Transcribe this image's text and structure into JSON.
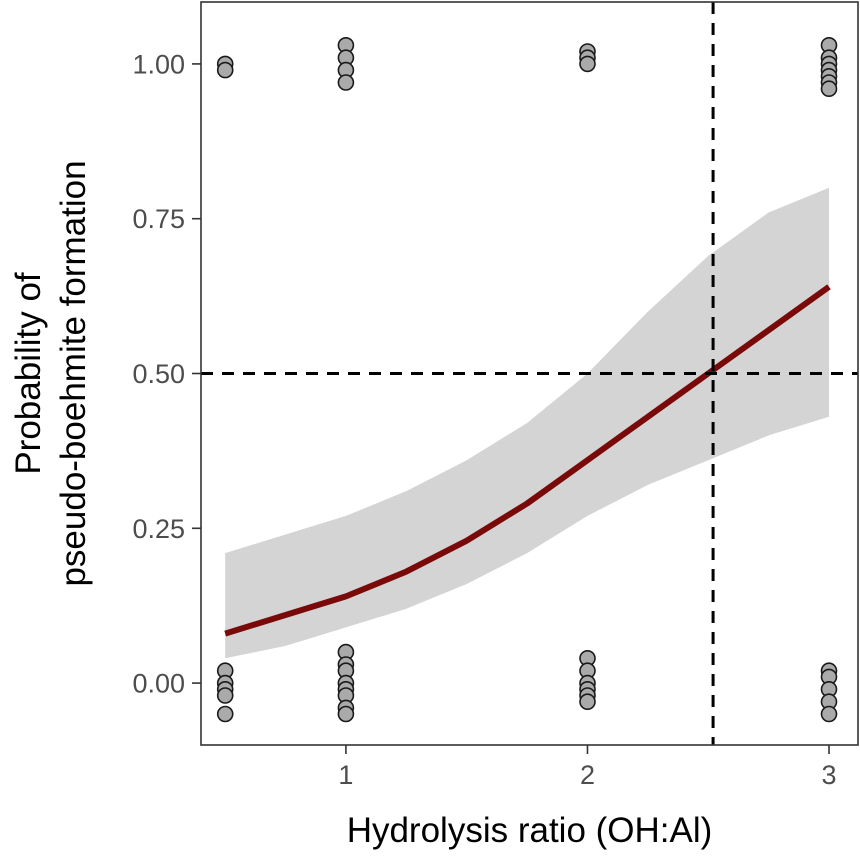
{
  "chart_data": {
    "type": "line",
    "title": "",
    "xlabel": "Hydrolysis ratio (OH:Al)",
    "ylabel": [
      "Probability of",
      "pseudo-boehmite formation"
    ],
    "xlim": [
      0.4,
      3.12
    ],
    "ylim": [
      -0.1,
      1.1
    ],
    "x_ticks": [
      1,
      2,
      3
    ],
    "x_tick_labels": [
      "1",
      "2",
      "3"
    ],
    "y_ticks": [
      0.0,
      0.25,
      0.5,
      0.75,
      1.0
    ],
    "y_tick_labels": [
      "0.00",
      "0.25",
      "0.50",
      "0.75",
      "1.00"
    ],
    "grid": false,
    "colors": {
      "fit_line": "#7a0a0a",
      "ribbon": "#d4d4d4",
      "point_fill": "#aaaaaa",
      "point_edge": "#1a1a1a",
      "reference_line": "#000000"
    },
    "reference_lines": {
      "vertical_x": 2.52,
      "horizontal_y": 0.5
    },
    "fit": {
      "name": "fit",
      "x": [
        0.5,
        0.75,
        1.0,
        1.25,
        1.5,
        1.75,
        2.0,
        2.25,
        2.5,
        2.75,
        3.0
      ],
      "y": [
        0.08,
        0.11,
        0.14,
        0.18,
        0.23,
        0.29,
        0.36,
        0.43,
        0.5,
        0.57,
        0.64
      ]
    },
    "ribbon": {
      "x": [
        0.5,
        0.75,
        1.0,
        1.25,
        1.5,
        1.75,
        2.0,
        2.25,
        2.5,
        2.75,
        3.0
      ],
      "lower": [
        0.04,
        0.06,
        0.09,
        0.12,
        0.16,
        0.21,
        0.27,
        0.32,
        0.36,
        0.4,
        0.43
      ],
      "upper": [
        0.21,
        0.24,
        0.27,
        0.31,
        0.36,
        0.42,
        0.5,
        0.6,
        0.69,
        0.76,
        0.8
      ]
    },
    "points": [
      {
        "x": 0.5,
        "y": 1.0
      },
      {
        "x": 0.5,
        "y": 0.99
      },
      {
        "x": 1.0,
        "y": 1.03
      },
      {
        "x": 1.0,
        "y": 1.01
      },
      {
        "x": 1.0,
        "y": 0.99
      },
      {
        "x": 1.0,
        "y": 0.97
      },
      {
        "x": 2.0,
        "y": 1.02
      },
      {
        "x": 2.0,
        "y": 1.01
      },
      {
        "x": 2.0,
        "y": 1.0
      },
      {
        "x": 3.0,
        "y": 1.03
      },
      {
        "x": 3.0,
        "y": 1.01
      },
      {
        "x": 3.0,
        "y": 1.0
      },
      {
        "x": 3.0,
        "y": 0.99
      },
      {
        "x": 3.0,
        "y": 0.98
      },
      {
        "x": 3.0,
        "y": 0.97
      },
      {
        "x": 3.0,
        "y": 0.96
      },
      {
        "x": 0.5,
        "y": 0.02
      },
      {
        "x": 0.5,
        "y": 0.0
      },
      {
        "x": 0.5,
        "y": -0.01
      },
      {
        "x": 0.5,
        "y": -0.02
      },
      {
        "x": 0.5,
        "y": -0.05
      },
      {
        "x": 1.0,
        "y": 0.05
      },
      {
        "x": 1.0,
        "y": 0.03
      },
      {
        "x": 1.0,
        "y": 0.02
      },
      {
        "x": 1.0,
        "y": 0.0
      },
      {
        "x": 1.0,
        "y": -0.01
      },
      {
        "x": 1.0,
        "y": -0.02
      },
      {
        "x": 1.0,
        "y": -0.04
      },
      {
        "x": 1.0,
        "y": -0.05
      },
      {
        "x": 2.0,
        "y": 0.04
      },
      {
        "x": 2.0,
        "y": 0.02
      },
      {
        "x": 2.0,
        "y": 0.0
      },
      {
        "x": 2.0,
        "y": -0.01
      },
      {
        "x": 2.0,
        "y": -0.02
      },
      {
        "x": 2.0,
        "y": -0.03
      },
      {
        "x": 3.0,
        "y": 0.02
      },
      {
        "x": 3.0,
        "y": 0.01
      },
      {
        "x": 3.0,
        "y": -0.01
      },
      {
        "x": 3.0,
        "y": -0.03
      },
      {
        "x": 3.0,
        "y": -0.05
      }
    ]
  }
}
